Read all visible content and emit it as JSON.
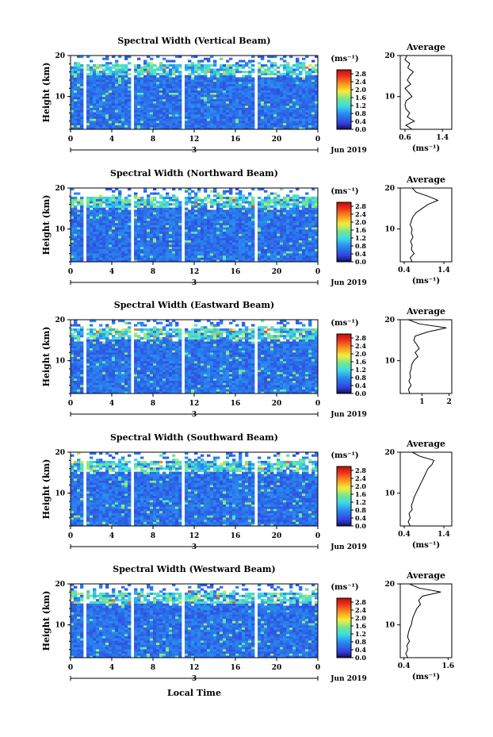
{
  "chart_data": [
    {
      "type": "heatmap",
      "title": "Spectral Width (Vertical Beam)",
      "ylabel": "Height (km)",
      "ylim": [
        2,
        20
      ],
      "yticks": [
        10,
        20
      ],
      "xticks": [
        "0",
        "4",
        "8",
        "12",
        "16",
        "20",
        "0"
      ],
      "xlim": [
        0,
        24
      ],
      "day_label": "3",
      "month_label": "Jun 2019",
      "colorbar_unit": "(ms⁻¹)",
      "colorbar_ticks": [
        "0.0",
        "0.4",
        "0.8",
        "1.2",
        "1.6",
        "2.0",
        "2.4",
        "2.8"
      ],
      "colorbar_range": [
        0,
        3.0
      ],
      "data_gaps_hours": [
        [
          1.0,
          1.5
        ],
        [
          5.6,
          6.0
        ],
        [
          10.6,
          11.0
        ],
        [
          17.6,
          18.0
        ],
        [
          22.2,
          22.4
        ]
      ],
      "average": {
        "title": "Average",
        "xlabel": "(ms⁻¹)",
        "xticks": [
          "0.6",
          "1.4"
        ],
        "xlim": [
          0.5,
          1.6
        ],
        "yticks": [
          10,
          20
        ],
        "height": [
          2,
          3,
          4,
          5,
          6,
          7,
          8,
          9,
          10,
          11,
          12,
          13,
          14,
          15,
          16,
          17,
          18,
          19,
          20
        ],
        "value": [
          0.75,
          0.62,
          0.8,
          0.65,
          0.7,
          0.62,
          0.6,
          0.63,
          0.75,
          0.68,
          0.6,
          0.72,
          0.65,
          0.7,
          0.78,
          0.66,
          0.7,
          0.6,
          0.64
        ]
      }
    },
    {
      "type": "heatmap",
      "title": "Spectral Width (Northward Beam)",
      "ylabel": "Height (km)",
      "ylim": [
        2,
        20
      ],
      "yticks": [
        10,
        20
      ],
      "xticks": [
        "0",
        "4",
        "8",
        "12",
        "16",
        "20",
        "0"
      ],
      "xlim": [
        0,
        24
      ],
      "day_label": "3",
      "month_label": "Jun 2019",
      "colorbar_unit": "(ms⁻¹)",
      "colorbar_ticks": [
        "0.0",
        "0.4",
        "0.8",
        "1.2",
        "1.6",
        "2.0",
        "2.4",
        "2.8"
      ],
      "colorbar_range": [
        0,
        3.0
      ],
      "data_gaps_hours": [
        [
          1.0,
          1.5
        ],
        [
          5.6,
          6.0
        ],
        [
          10.6,
          11.0
        ],
        [
          17.6,
          18.0
        ]
      ],
      "average": {
        "title": "Average",
        "xlabel": "(ms⁻¹)",
        "xticks": [
          "0.4",
          "1.4"
        ],
        "xlim": [
          0.3,
          1.6
        ],
        "yticks": [
          10,
          20
        ],
        "height": [
          2,
          3,
          4,
          5,
          6,
          7,
          8,
          9,
          10,
          11,
          12,
          13,
          14,
          15,
          16,
          17,
          18,
          19,
          20
        ],
        "value": [
          0.6,
          0.55,
          0.65,
          0.58,
          0.6,
          0.56,
          0.62,
          0.58,
          0.6,
          0.55,
          0.58,
          0.62,
          0.7,
          0.85,
          1.0,
          1.25,
          1.0,
          0.7,
          0.6
        ]
      }
    },
    {
      "type": "heatmap",
      "title": "Spectral Width (Eastward Beam)",
      "ylabel": "Height (km)",
      "ylim": [
        2,
        20
      ],
      "yticks": [
        10,
        20
      ],
      "xticks": [
        "0",
        "4",
        "8",
        "12",
        "16",
        "20",
        "0"
      ],
      "xlim": [
        0,
        24
      ],
      "day_label": "3",
      "month_label": "Jun 2019",
      "colorbar_unit": "(ms⁻¹)",
      "colorbar_ticks": [
        "0.0",
        "0.4",
        "0.8",
        "1.2",
        "1.6",
        "2.0",
        "2.4",
        "2.8"
      ],
      "colorbar_range": [
        0,
        3.0
      ],
      "data_gaps_hours": [
        [
          1.0,
          1.5
        ],
        [
          5.6,
          6.0
        ],
        [
          10.6,
          11.0
        ],
        [
          17.6,
          18.0
        ]
      ],
      "average": {
        "title": "Average",
        "xlabel": "",
        "xticks": [
          "1",
          "2"
        ],
        "xlim": [
          0.2,
          2.1
        ],
        "yticks": [
          10,
          20
        ],
        "height": [
          2,
          3,
          4,
          5,
          6,
          7,
          8,
          9,
          10,
          11,
          12,
          13,
          14,
          15,
          16,
          17,
          18,
          19,
          20
        ],
        "value": [
          0.55,
          0.5,
          0.6,
          0.52,
          0.58,
          0.55,
          0.6,
          0.62,
          0.7,
          0.85,
          0.75,
          0.9,
          0.8,
          0.7,
          0.75,
          1.2,
          1.9,
          0.9,
          0.5
        ]
      }
    },
    {
      "type": "heatmap",
      "title": "Spectral Width (Southward Beam)",
      "ylabel": "Height (km)",
      "ylim": [
        2,
        20
      ],
      "yticks": [
        10,
        20
      ],
      "xticks": [
        "0",
        "4",
        "8",
        "12",
        "16",
        "20",
        "0"
      ],
      "xlim": [
        0,
        24
      ],
      "day_label": "3",
      "month_label": "Jun 2019",
      "colorbar_unit": "(ms⁻¹)",
      "colorbar_ticks": [
        "0.0",
        "0.4",
        "0.8",
        "1.2",
        "1.6",
        "2.0",
        "2.4",
        "2.8"
      ],
      "colorbar_range": [
        0,
        3.0
      ],
      "data_gaps_hours": [
        [
          1.0,
          1.5
        ],
        [
          5.6,
          6.0
        ],
        [
          10.6,
          11.0
        ],
        [
          17.6,
          18.0
        ]
      ],
      "average": {
        "title": "Average",
        "xlabel": "(ms⁻¹)",
        "xticks": [
          "0.4",
          "1.4"
        ],
        "xlim": [
          0.3,
          1.6
        ],
        "yticks": [
          10,
          20
        ],
        "height": [
          2,
          3,
          4,
          5,
          6,
          7,
          8,
          9,
          10,
          11,
          12,
          13,
          14,
          15,
          16,
          17,
          18,
          19,
          20
        ],
        "value": [
          0.55,
          0.5,
          0.55,
          0.52,
          0.6,
          0.58,
          0.62,
          0.65,
          0.7,
          0.75,
          0.8,
          0.85,
          0.9,
          0.95,
          1.0,
          1.1,
          1.15,
          0.8,
          0.6
        ]
      }
    },
    {
      "type": "heatmap",
      "title": "Spectral Width (Westward Beam)",
      "ylabel": "Height (km)",
      "ylim": [
        2,
        20
      ],
      "yticks": [
        10,
        20
      ],
      "xticks": [
        "0",
        "4",
        "8",
        "12",
        "16",
        "20",
        "0"
      ],
      "xlim": [
        0,
        24
      ],
      "day_label": "3",
      "month_label": "Jun 2019",
      "colorbar_unit": "(ms⁻¹)",
      "colorbar_ticks": [
        "0.0",
        "0.4",
        "0.8",
        "1.2",
        "1.6",
        "2.0",
        "2.4",
        "2.8"
      ],
      "colorbar_range": [
        0,
        3.0
      ],
      "data_gaps_hours": [
        [
          1.0,
          1.5
        ],
        [
          5.6,
          6.0
        ],
        [
          10.6,
          11.0
        ],
        [
          17.6,
          18.0
        ]
      ],
      "average": {
        "title": "Average",
        "xlabel": "(ms⁻¹)",
        "xticks": [
          "0.4",
          "1.6"
        ],
        "xlim": [
          0.3,
          1.7
        ],
        "yticks": [
          10,
          20
        ],
        "height": [
          2,
          3,
          4,
          5,
          6,
          7,
          8,
          9,
          10,
          11,
          12,
          13,
          14,
          15,
          16,
          17,
          18,
          19,
          20
        ],
        "value": [
          0.5,
          0.45,
          0.5,
          0.48,
          0.55,
          0.5,
          0.52,
          0.55,
          0.6,
          0.62,
          0.65,
          0.7,
          0.75,
          0.85,
          0.8,
          0.9,
          1.4,
          0.8,
          0.55
        ]
      }
    }
  ],
  "footer": {
    "xlabel": "Local Time"
  }
}
